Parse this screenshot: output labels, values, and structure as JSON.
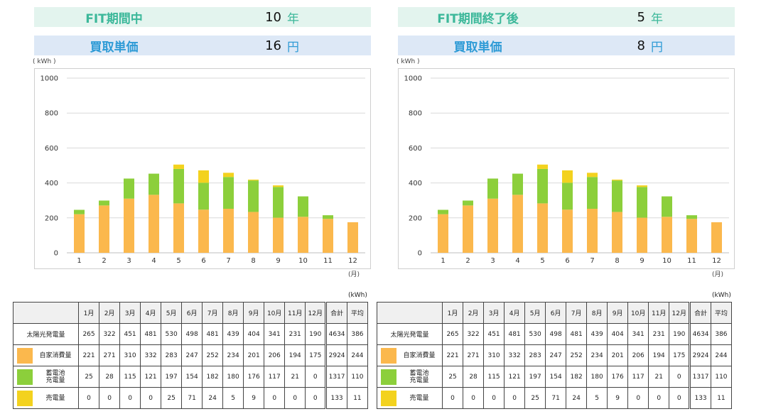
{
  "panels": [
    {
      "header1": {
        "label": "FIT期間中",
        "value": "10",
        "unit": "年"
      },
      "header2": {
        "label": "買取単価",
        "value": "16",
        "unit": "円"
      },
      "y_unit": "( kWh )",
      "x_unit": "(月)",
      "table_unit": "(kWh)"
    },
    {
      "header1": {
        "label": "FIT期間終了後",
        "value": "5",
        "unit": "年"
      },
      "header2": {
        "label": "買取単価",
        "value": "8",
        "unit": "円"
      },
      "y_unit": "( kWh )",
      "x_unit": "(月)",
      "table_unit": "(kWh)"
    }
  ],
  "colors": {
    "self_use": "#fbb84d",
    "battery": "#8ccf3b",
    "sold": "#f3d21e",
    "grid": "#d9d9d9"
  },
  "table": {
    "months": [
      "1月",
      "2月",
      "3月",
      "4月",
      "5月",
      "6月",
      "7月",
      "8月",
      "9月",
      "10月",
      "11月",
      "12月"
    ],
    "total_label": "合計",
    "avg_label": "平均",
    "rows": [
      {
        "label": "太陽光発電量",
        "values": [
          "265",
          "322",
          "451",
          "481",
          "530",
          "498",
          "481",
          "439",
          "404",
          "341",
          "231",
          "190"
        ],
        "total": "4634",
        "avg": "386"
      },
      {
        "label": "自家消費量",
        "values": [
          "221",
          "271",
          "310",
          "332",
          "283",
          "247",
          "252",
          "234",
          "201",
          "206",
          "194",
          "175"
        ],
        "total": "2924",
        "avg": "244"
      },
      {
        "label": "蓄電池\n充電量",
        "values": [
          "25",
          "28",
          "115",
          "121",
          "197",
          "154",
          "182",
          "180",
          "176",
          "117",
          "21",
          "0"
        ],
        "total": "1317",
        "avg": "110"
      },
      {
        "label": "売電量",
        "values": [
          "0",
          "0",
          "0",
          "0",
          "25",
          "71",
          "24",
          "5",
          "9",
          "0",
          "0",
          "0"
        ],
        "total": "133",
        "avg": "11"
      }
    ]
  },
  "chart_data": [
    {
      "type": "bar",
      "stacked": true,
      "categories": [
        "1",
        "2",
        "3",
        "4",
        "5",
        "6",
        "7",
        "8",
        "9",
        "10",
        "11",
        "12"
      ],
      "series": [
        {
          "name": "自家消費量",
          "color": "#fbb84d",
          "values": [
            221,
            271,
            310,
            332,
            283,
            247,
            252,
            234,
            201,
            206,
            194,
            175
          ]
        },
        {
          "name": "蓄電池充電量",
          "color": "#8ccf3b",
          "values": [
            25,
            28,
            115,
            121,
            197,
            154,
            182,
            180,
            176,
            117,
            21,
            0
          ]
        },
        {
          "name": "売電量",
          "color": "#f3d21e",
          "values": [
            0,
            0,
            0,
            0,
            25,
            71,
            24,
            5,
            9,
            0,
            0,
            0
          ]
        }
      ],
      "yticks": [
        0,
        200,
        400,
        600,
        800,
        1000
      ],
      "ylim": [
        0,
        1000
      ],
      "ylabel": "( kWh )",
      "xlabel": "(月)",
      "grid": true
    },
    {
      "type": "bar",
      "stacked": true,
      "categories": [
        "1",
        "2",
        "3",
        "4",
        "5",
        "6",
        "7",
        "8",
        "9",
        "10",
        "11",
        "12"
      ],
      "series": [
        {
          "name": "自家消費量",
          "color": "#fbb84d",
          "values": [
            221,
            271,
            310,
            332,
            283,
            247,
            252,
            234,
            201,
            206,
            194,
            175
          ]
        },
        {
          "name": "蓄電池充電量",
          "color": "#8ccf3b",
          "values": [
            25,
            28,
            115,
            121,
            197,
            154,
            182,
            180,
            176,
            117,
            21,
            0
          ]
        },
        {
          "name": "売電量",
          "color": "#f3d21e",
          "values": [
            0,
            0,
            0,
            0,
            25,
            71,
            24,
            5,
            9,
            0,
            0,
            0
          ]
        }
      ],
      "yticks": [
        0,
        200,
        400,
        600,
        800,
        1000
      ],
      "ylim": [
        0,
        1000
      ],
      "ylabel": "( kWh )",
      "xlabel": "(月)",
      "grid": true
    }
  ]
}
